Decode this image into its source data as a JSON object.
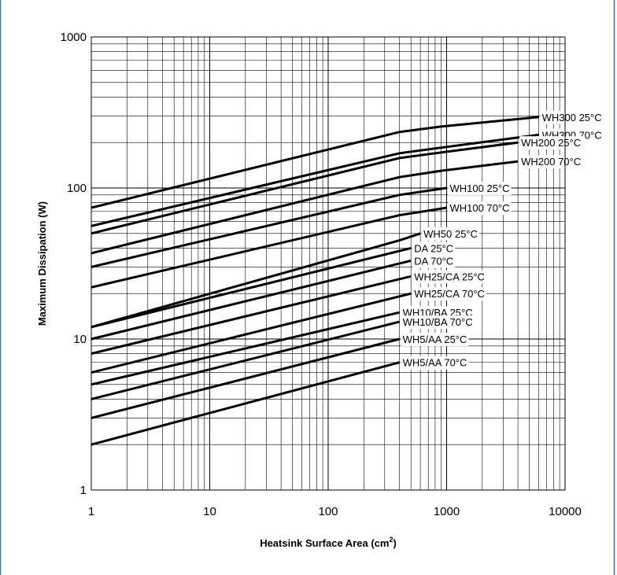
{
  "chart_data": {
    "type": "line",
    "x_scale": "log",
    "y_scale": "log",
    "xlim": [
      1,
      10000
    ],
    "ylim": [
      1,
      1000
    ],
    "grid": true,
    "xlabel": "Heatsink Surface Area (cm",
    "xlabel_sup": "2",
    "xlabel_suffix": ")",
    "ylabel": "Maximum Dissipation (W)",
    "x_ticks": [
      {
        "value": 1,
        "label": "1"
      },
      {
        "value": 10,
        "label": "10"
      },
      {
        "value": 100,
        "label": "100"
      },
      {
        "value": 1000,
        "label": "1000"
      },
      {
        "value": 10000,
        "label": "10000"
      }
    ],
    "y_ticks": [
      {
        "value": 1,
        "label": "1"
      },
      {
        "value": 10,
        "label": "10"
      },
      {
        "value": 100,
        "label": "100"
      },
      {
        "value": 1000,
        "label": "1000"
      }
    ],
    "line_color": "#000000",
    "series": [
      {
        "name": "WH300 25°C",
        "points": [
          [
            1,
            74
          ],
          [
            400,
            235
          ],
          [
            900,
            255
          ],
          [
            6000,
            295
          ]
        ]
      },
      {
        "name": "WH300 70°C",
        "points": [
          [
            1,
            56
          ],
          [
            400,
            170
          ],
          [
            900,
            185
          ],
          [
            6000,
            225
          ]
        ]
      },
      {
        "name": "WH200 25°C",
        "points": [
          [
            1,
            50
          ],
          [
            400,
            158
          ],
          [
            900,
            172
          ],
          [
            4000,
            200
          ]
        ]
      },
      {
        "name": "WH200 70°C",
        "points": [
          [
            1,
            37
          ],
          [
            400,
            118
          ],
          [
            900,
            130
          ],
          [
            4000,
            150
          ]
        ]
      },
      {
        "name": "WH100 25°C",
        "points": [
          [
            1,
            30
          ],
          [
            400,
            90
          ],
          [
            1000,
            100
          ]
        ]
      },
      {
        "name": "WH100 70°C",
        "points": [
          [
            1,
            22
          ],
          [
            400,
            66
          ],
          [
            1000,
            74
          ]
        ]
      },
      {
        "name": "WH50 25°C",
        "points": [
          [
            1,
            12
          ],
          [
            400,
            45
          ],
          [
            600,
            50
          ]
        ]
      },
      {
        "name": "DA 25°C",
        "points": [
          [
            1,
            12
          ],
          [
            500,
            40
          ]
        ]
      },
      {
        "name": "DA 70°C",
        "points": [
          [
            1,
            10
          ],
          [
            500,
            33
          ]
        ]
      },
      {
        "name": "WH25/CA 25°C",
        "points": [
          [
            1,
            8
          ],
          [
            500,
            26
          ]
        ]
      },
      {
        "name": "WH25/CA 70°C",
        "points": [
          [
            1,
            6
          ],
          [
            500,
            20
          ]
        ]
      },
      {
        "name": "WH10/BA 25°C",
        "points": [
          [
            1,
            5
          ],
          [
            400,
            15
          ]
        ]
      },
      {
        "name": "WH10/BA 70°C",
        "points": [
          [
            1,
            4
          ],
          [
            400,
            13
          ]
        ]
      },
      {
        "name": "WH5/AA 25°C",
        "points": [
          [
            1,
            3
          ],
          [
            400,
            10
          ]
        ]
      },
      {
        "name": "WH5/AA 70°C",
        "points": [
          [
            1,
            2
          ],
          [
            400,
            7
          ]
        ]
      }
    ]
  }
}
